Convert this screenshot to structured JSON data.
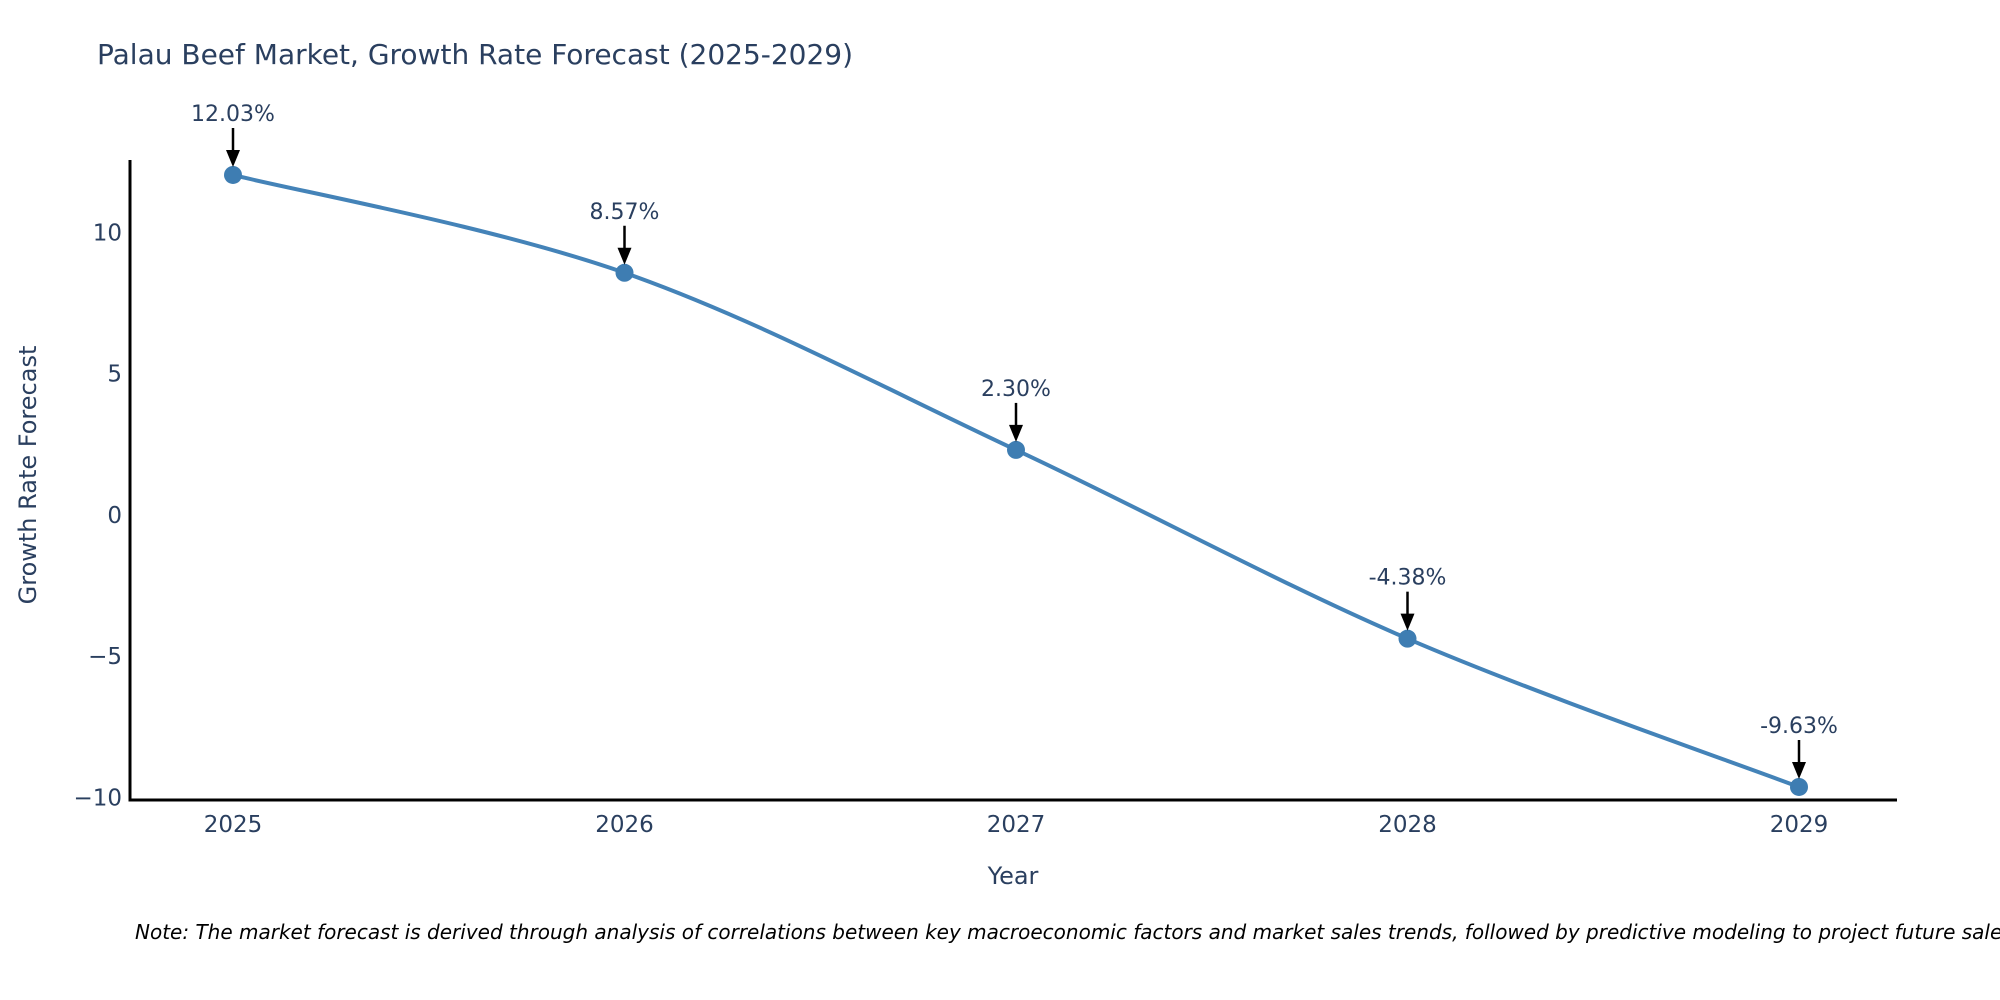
{
  "chart_data": {
    "type": "line",
    "title": "Palau Beef Market, Growth Rate Forecast (2025-2029)",
    "xlabel": "Year",
    "ylabel": "Growth Rate Forecast",
    "categories": [
      2025,
      2026,
      2027,
      2028,
      2029
    ],
    "series": [
      {
        "name": "Growth Rate Forecast",
        "values": [
          12.03,
          8.57,
          2.3,
          -4.38,
          -9.63
        ],
        "point_labels": [
          "12.03%",
          "8.57%",
          "2.30%",
          "-4.38%",
          "-9.63%"
        ]
      }
    ],
    "xtick_labels": [
      "2025",
      "2026",
      "2027",
      "2028",
      "2029"
    ],
    "ytick_values": [
      10,
      5,
      0,
      -5,
      -10
    ],
    "ytick_labels": [
      "10",
      "5",
      "0",
      "−5",
      "−10"
    ],
    "ylim": [
      -10.1,
      12.6
    ],
    "grid": "off",
    "legend": "none",
    "line_shape": "spline",
    "line_color": "#4483b8",
    "marker_color": "#3e7db2",
    "axis_color": "#000000",
    "text_color": "#2a3f5f",
    "annotation_arrow_color": "#000000"
  },
  "note": "Note: The market forecast is derived through analysis of correlations between key macroeconomic factors and market sales trends, followed by predictive modeling to project future sales"
}
